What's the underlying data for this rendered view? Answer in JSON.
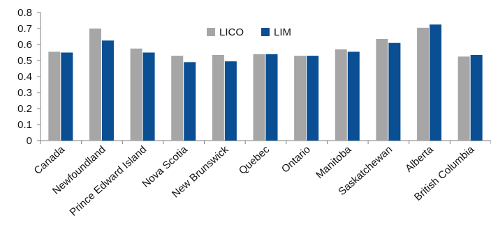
{
  "chart_data": {
    "type": "bar",
    "categories": [
      "Canada",
      "Newfoundland",
      "Prince Edward Island",
      "Nova Scotia",
      "New Brunswick",
      "Quebec",
      "Ontario",
      "Manitoba",
      "Saskatchewan",
      "Alberta",
      "British Columbia"
    ],
    "series": [
      {
        "name": "LICO",
        "color": "#a6a6a6",
        "values": [
          0.555,
          0.7,
          0.575,
          0.53,
          0.535,
          0.54,
          0.53,
          0.57,
          0.635,
          0.705,
          0.525
        ]
      },
      {
        "name": "LIM",
        "color": "#0a4f93",
        "values": [
          0.55,
          0.625,
          0.55,
          0.49,
          0.495,
          0.54,
          0.53,
          0.555,
          0.61,
          0.725,
          0.535
        ]
      }
    ],
    "ylim": [
      0,
      0.8
    ],
    "yticks": [
      "0",
      "0.1",
      "0.2",
      "0.3",
      "0.4",
      "0.5",
      "0.6",
      "0.7",
      "0.8"
    ],
    "ytick_values": [
      0,
      0.1,
      0.2,
      0.3,
      0.4,
      0.5,
      0.6,
      0.7,
      0.8
    ],
    "grid": false,
    "legend_position": "top-center",
    "title": "",
    "xlabel": "",
    "ylabel": ""
  }
}
